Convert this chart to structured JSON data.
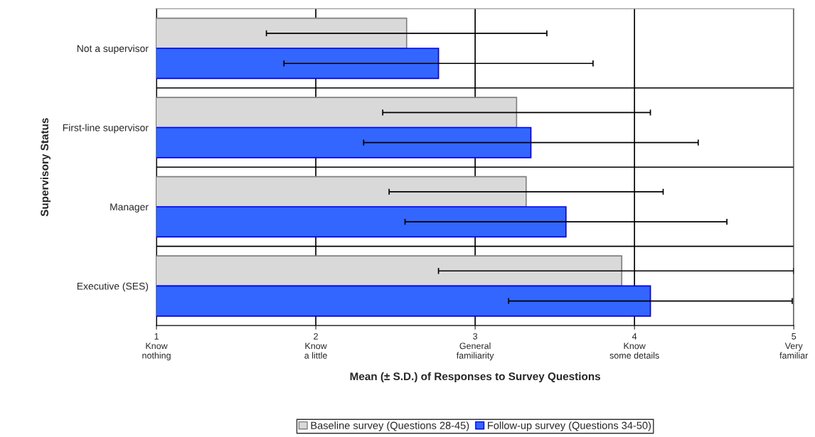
{
  "chart_data": {
    "type": "bar",
    "orientation": "horizontal",
    "xlabel": "Mean (± S.D.) of Responses to Survey Questions",
    "ylabel": "Supervisory Status",
    "categories": [
      "Not a supervisor",
      "First-line supervisor",
      "Manager",
      "Executive (SES)"
    ],
    "series": [
      {
        "name": "Baseline survey (Questions 28-45)",
        "color": "#d9d9d9",
        "values": [
          2.57,
          3.26,
          3.32,
          3.92
        ],
        "errors": [
          0.88,
          0.84,
          0.86,
          [
            2.77,
            5
          ]
        ]
      },
      {
        "name": "Follow-up survey (Questions 34-50)",
        "color": "#3366ff",
        "values": [
          2.77,
          3.35,
          3.57,
          4.1
        ],
        "errors": [
          0.97,
          1.05,
          1.01,
          0.89
        ]
      }
    ],
    "xlim": [
      1,
      5
    ],
    "xticks": [
      {
        "value": 1,
        "label": "1\nKnow\nnothing"
      },
      {
        "value": 2,
        "label": "2\nKnow\na little"
      },
      {
        "value": 3,
        "label": "3\nGeneral\nfamiliarity"
      },
      {
        "value": 4,
        "label": "4\nKnow\nsome details"
      },
      {
        "value": 5,
        "label": "5\nVery\nfamiliar"
      }
    ],
    "grid": true,
    "legend": "bottom"
  }
}
